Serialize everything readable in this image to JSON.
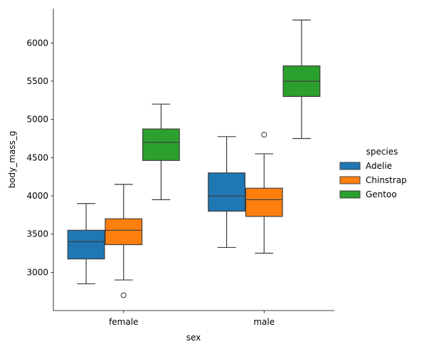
{
  "chart_data": {
    "type": "box",
    "xlabel": "sex",
    "ylabel": "body_mass_g",
    "categories": [
      "female",
      "male"
    ],
    "ylim": [
      2500,
      6450
    ],
    "yticks": [
      3000,
      3500,
      4000,
      4500,
      5000,
      5500,
      6000
    ],
    "grid": false,
    "legend": {
      "title": "species",
      "placement": "right"
    },
    "series": [
      {
        "name": "Adelie",
        "color": "#1f77b4",
        "boxes": [
          {
            "category": "female",
            "whisker_low": 2850,
            "q1": 3175,
            "median": 3400,
            "q3": 3550,
            "whisker_high": 3900,
            "outliers": []
          },
          {
            "category": "male",
            "whisker_low": 3325,
            "q1": 3800,
            "median": 4000,
            "q3": 4300,
            "whisker_high": 4775,
            "outliers": []
          }
        ]
      },
      {
        "name": "Chinstrap",
        "color": "#ff7f0e",
        "boxes": [
          {
            "category": "female",
            "whisker_low": 2900,
            "q1": 3362,
            "median": 3550,
            "q3": 3700,
            "whisker_high": 4150,
            "outliers": [
              2700
            ]
          },
          {
            "category": "male",
            "whisker_low": 3250,
            "q1": 3731,
            "median": 3950,
            "q3": 4100,
            "whisker_high": 4550,
            "outliers": [
              4800
            ]
          }
        ]
      },
      {
        "name": "Gentoo",
        "color": "#2ca02c",
        "boxes": [
          {
            "category": "female",
            "whisker_low": 3950,
            "q1": 4463,
            "median": 4700,
            "q3": 4875,
            "whisker_high": 5200,
            "outliers": []
          },
          {
            "category": "male",
            "whisker_low": 4750,
            "q1": 5300,
            "median": 5500,
            "q3": 5700,
            "whisker_high": 6300,
            "outliers": []
          }
        ]
      }
    ]
  }
}
